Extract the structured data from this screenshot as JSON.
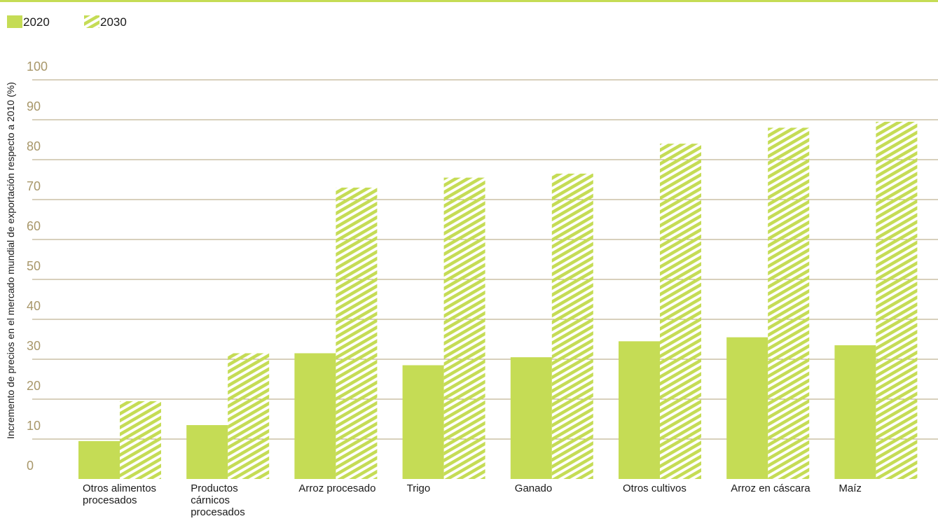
{
  "colors": {
    "accent": "#c5dc55",
    "grid": "#b2a27a",
    "tick": "#a8976a",
    "text": "#1a1a1a"
  },
  "legend": {
    "items": [
      {
        "label": "2020",
        "style": "solid"
      },
      {
        "label": "2030",
        "style": "hatched"
      }
    ]
  },
  "chart_data": {
    "type": "bar",
    "ylabel": "Incremento de precios en el mercado mundial de exportación respecto a 2010 (%)",
    "xlabel": "",
    "ylim": [
      0,
      100
    ],
    "yticks": [
      "0",
      "10",
      "20",
      "30",
      "40",
      "50",
      "60",
      "70",
      "80",
      "90",
      "100"
    ],
    "grid": true,
    "legend_position": "top-left",
    "categories": [
      [
        "Otros alimentos",
        "procesados"
      ],
      [
        "Productos",
        "cárnicos",
        "procesados"
      ],
      [
        "Arroz procesado"
      ],
      [
        "Trigo"
      ],
      [
        "Ganado"
      ],
      [
        "Otros cultivos"
      ],
      [
        "Arroz en cáscara"
      ],
      [
        "Maíz"
      ]
    ],
    "series": [
      {
        "name": "2020",
        "values": [
          9.5,
          13.5,
          31.5,
          28.5,
          30.5,
          34.5,
          35.5,
          33.5
        ]
      },
      {
        "name": "2030",
        "values": [
          19.5,
          31.5,
          73,
          75.5,
          76.5,
          84,
          88,
          89.5
        ]
      }
    ]
  }
}
